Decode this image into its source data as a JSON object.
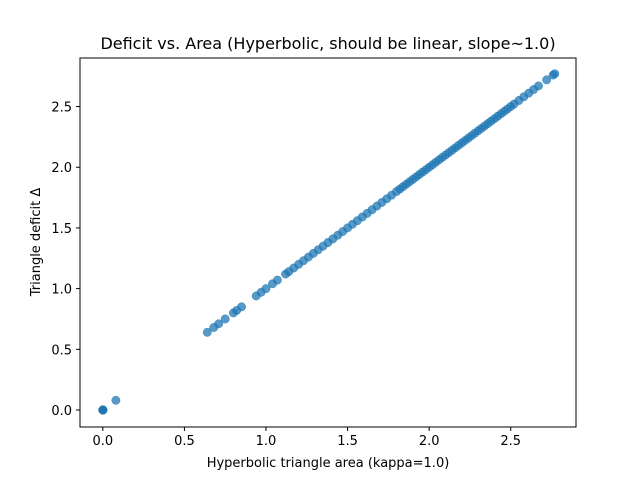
{
  "chart_data": {
    "type": "scatter",
    "title": "Deficit vs. Area (Hyperbolic, should be linear, slope~1.0)",
    "xlabel": "Hyperbolic triangle area (kappa=1.0)",
    "ylabel": "Triangle deficit Δ",
    "xlim": [
      -0.14,
      2.9
    ],
    "ylim": [
      -0.14,
      2.9
    ],
    "xticks": [
      0.0,
      0.5,
      1.0,
      1.5,
      2.0,
      2.5
    ],
    "yticks": [
      0.0,
      0.5,
      1.0,
      1.5,
      2.0,
      2.5
    ],
    "xtick_labels": [
      "0.0",
      "0.5",
      "1.0",
      "1.5",
      "2.0",
      "2.5"
    ],
    "ytick_labels": [
      "0.0",
      "0.5",
      "1.0",
      "1.5",
      "2.0",
      "2.5"
    ],
    "grid": false,
    "legend": "none",
    "marker_color": "#1f77b4",
    "marker_alpha": 0.75,
    "series": [
      {
        "x": [
          0.0,
          0.0,
          0.0,
          0.0,
          0.0,
          0.0,
          0.0,
          0.08,
          0.64,
          0.68,
          0.71,
          0.75,
          0.8,
          0.82,
          0.85,
          0.94,
          0.97,
          1.0,
          1.04,
          1.07,
          1.12,
          1.14,
          1.17,
          1.2,
          1.23,
          1.26,
          1.29,
          1.32,
          1.35,
          1.38,
          1.41,
          1.44,
          1.47,
          1.5,
          1.53,
          1.56,
          1.59,
          1.62,
          1.65,
          1.68,
          1.71,
          1.74,
          1.77,
          1.8,
          1.82,
          1.84,
          1.86,
          1.88,
          1.9,
          1.92,
          1.94,
          1.96,
          1.98,
          2.0,
          2.02,
          2.04,
          2.06,
          2.08,
          2.1,
          2.12,
          2.14,
          2.16,
          2.18,
          2.2,
          2.22,
          2.24,
          2.26,
          2.28,
          2.3,
          2.32,
          2.34,
          2.36,
          2.38,
          2.4,
          2.42,
          2.44,
          2.46,
          2.48,
          2.5,
          2.52,
          2.55,
          2.58,
          2.61,
          2.64,
          2.67,
          2.72,
          2.76,
          2.77
        ],
        "y": [
          0.0,
          0.0,
          0.0,
          0.0,
          0.0,
          0.0,
          0.0,
          0.08,
          0.64,
          0.68,
          0.71,
          0.75,
          0.8,
          0.82,
          0.85,
          0.94,
          0.97,
          1.0,
          1.04,
          1.07,
          1.12,
          1.14,
          1.17,
          1.2,
          1.23,
          1.26,
          1.29,
          1.32,
          1.35,
          1.38,
          1.41,
          1.44,
          1.47,
          1.5,
          1.53,
          1.56,
          1.59,
          1.62,
          1.65,
          1.68,
          1.71,
          1.74,
          1.77,
          1.8,
          1.82,
          1.84,
          1.86,
          1.88,
          1.9,
          1.92,
          1.94,
          1.96,
          1.98,
          2.0,
          2.02,
          2.04,
          2.06,
          2.08,
          2.1,
          2.12,
          2.14,
          2.16,
          2.18,
          2.2,
          2.22,
          2.24,
          2.26,
          2.28,
          2.3,
          2.32,
          2.34,
          2.36,
          2.38,
          2.4,
          2.42,
          2.44,
          2.46,
          2.48,
          2.5,
          2.52,
          2.55,
          2.58,
          2.61,
          2.64,
          2.67,
          2.72,
          2.76,
          2.77
        ]
      }
    ]
  }
}
